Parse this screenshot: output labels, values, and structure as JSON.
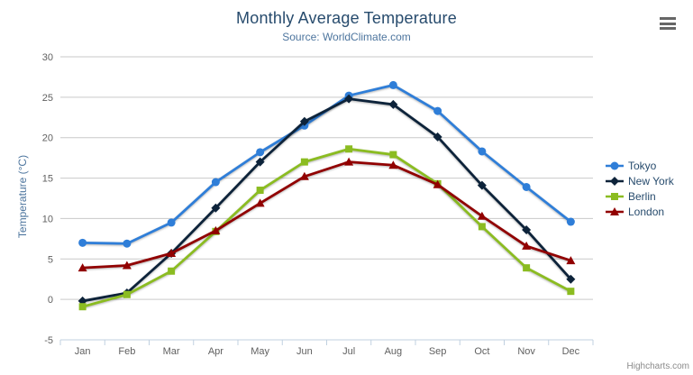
{
  "chart_data": {
    "type": "line",
    "title": "Monthly Average Temperature",
    "subtitle": "Source: WorldClimate.com",
    "categories": [
      "Jan",
      "Feb",
      "Mar",
      "Apr",
      "May",
      "Jun",
      "Jul",
      "Aug",
      "Sep",
      "Oct",
      "Nov",
      "Dec"
    ],
    "xlabel": "",
    "ylabel": "Temperature (°C)",
    "ylim": [
      -5,
      30
    ],
    "ytick_step": 5,
    "grid": true,
    "legend_position": "right",
    "series": [
      {
        "name": "Tokyo",
        "color": "#2f7ed8",
        "marker": "circle",
        "values": [
          7.0,
          6.9,
          9.5,
          14.5,
          18.2,
          21.5,
          25.2,
          26.5,
          23.3,
          18.3,
          13.9,
          9.6
        ]
      },
      {
        "name": "New York",
        "color": "#0d233a",
        "marker": "diamond",
        "values": [
          -0.2,
          0.8,
          5.7,
          11.3,
          17.0,
          22.0,
          24.8,
          24.1,
          20.1,
          14.1,
          8.6,
          2.5
        ]
      },
      {
        "name": "Berlin",
        "color": "#8bbc21",
        "marker": "square",
        "values": [
          -0.9,
          0.6,
          3.5,
          8.4,
          13.5,
          17.0,
          18.6,
          17.9,
          14.3,
          9.0,
          3.9,
          1.0
        ]
      },
      {
        "name": "London",
        "color": "#910000",
        "marker": "triangle",
        "values": [
          3.9,
          4.2,
          5.7,
          8.5,
          11.9,
          15.2,
          17.0,
          16.6,
          14.2,
          10.3,
          6.6,
          4.8
        ]
      }
    ]
  },
  "credit": {
    "label": "Highcharts.com"
  },
  "icons": {
    "context_menu": "hamburger-menu"
  },
  "colors": {
    "title": "#274b6d",
    "subtitle": "#4d759e",
    "axis_title": "#4d759e",
    "tick_label": "#606060",
    "grid_line": "#c9c9c9",
    "axis_line": "#c0d0e0",
    "legend_text": "#274b6d",
    "credit": "#8a8a8a",
    "menu_icon": "#666666",
    "background": "#ffffff"
  }
}
